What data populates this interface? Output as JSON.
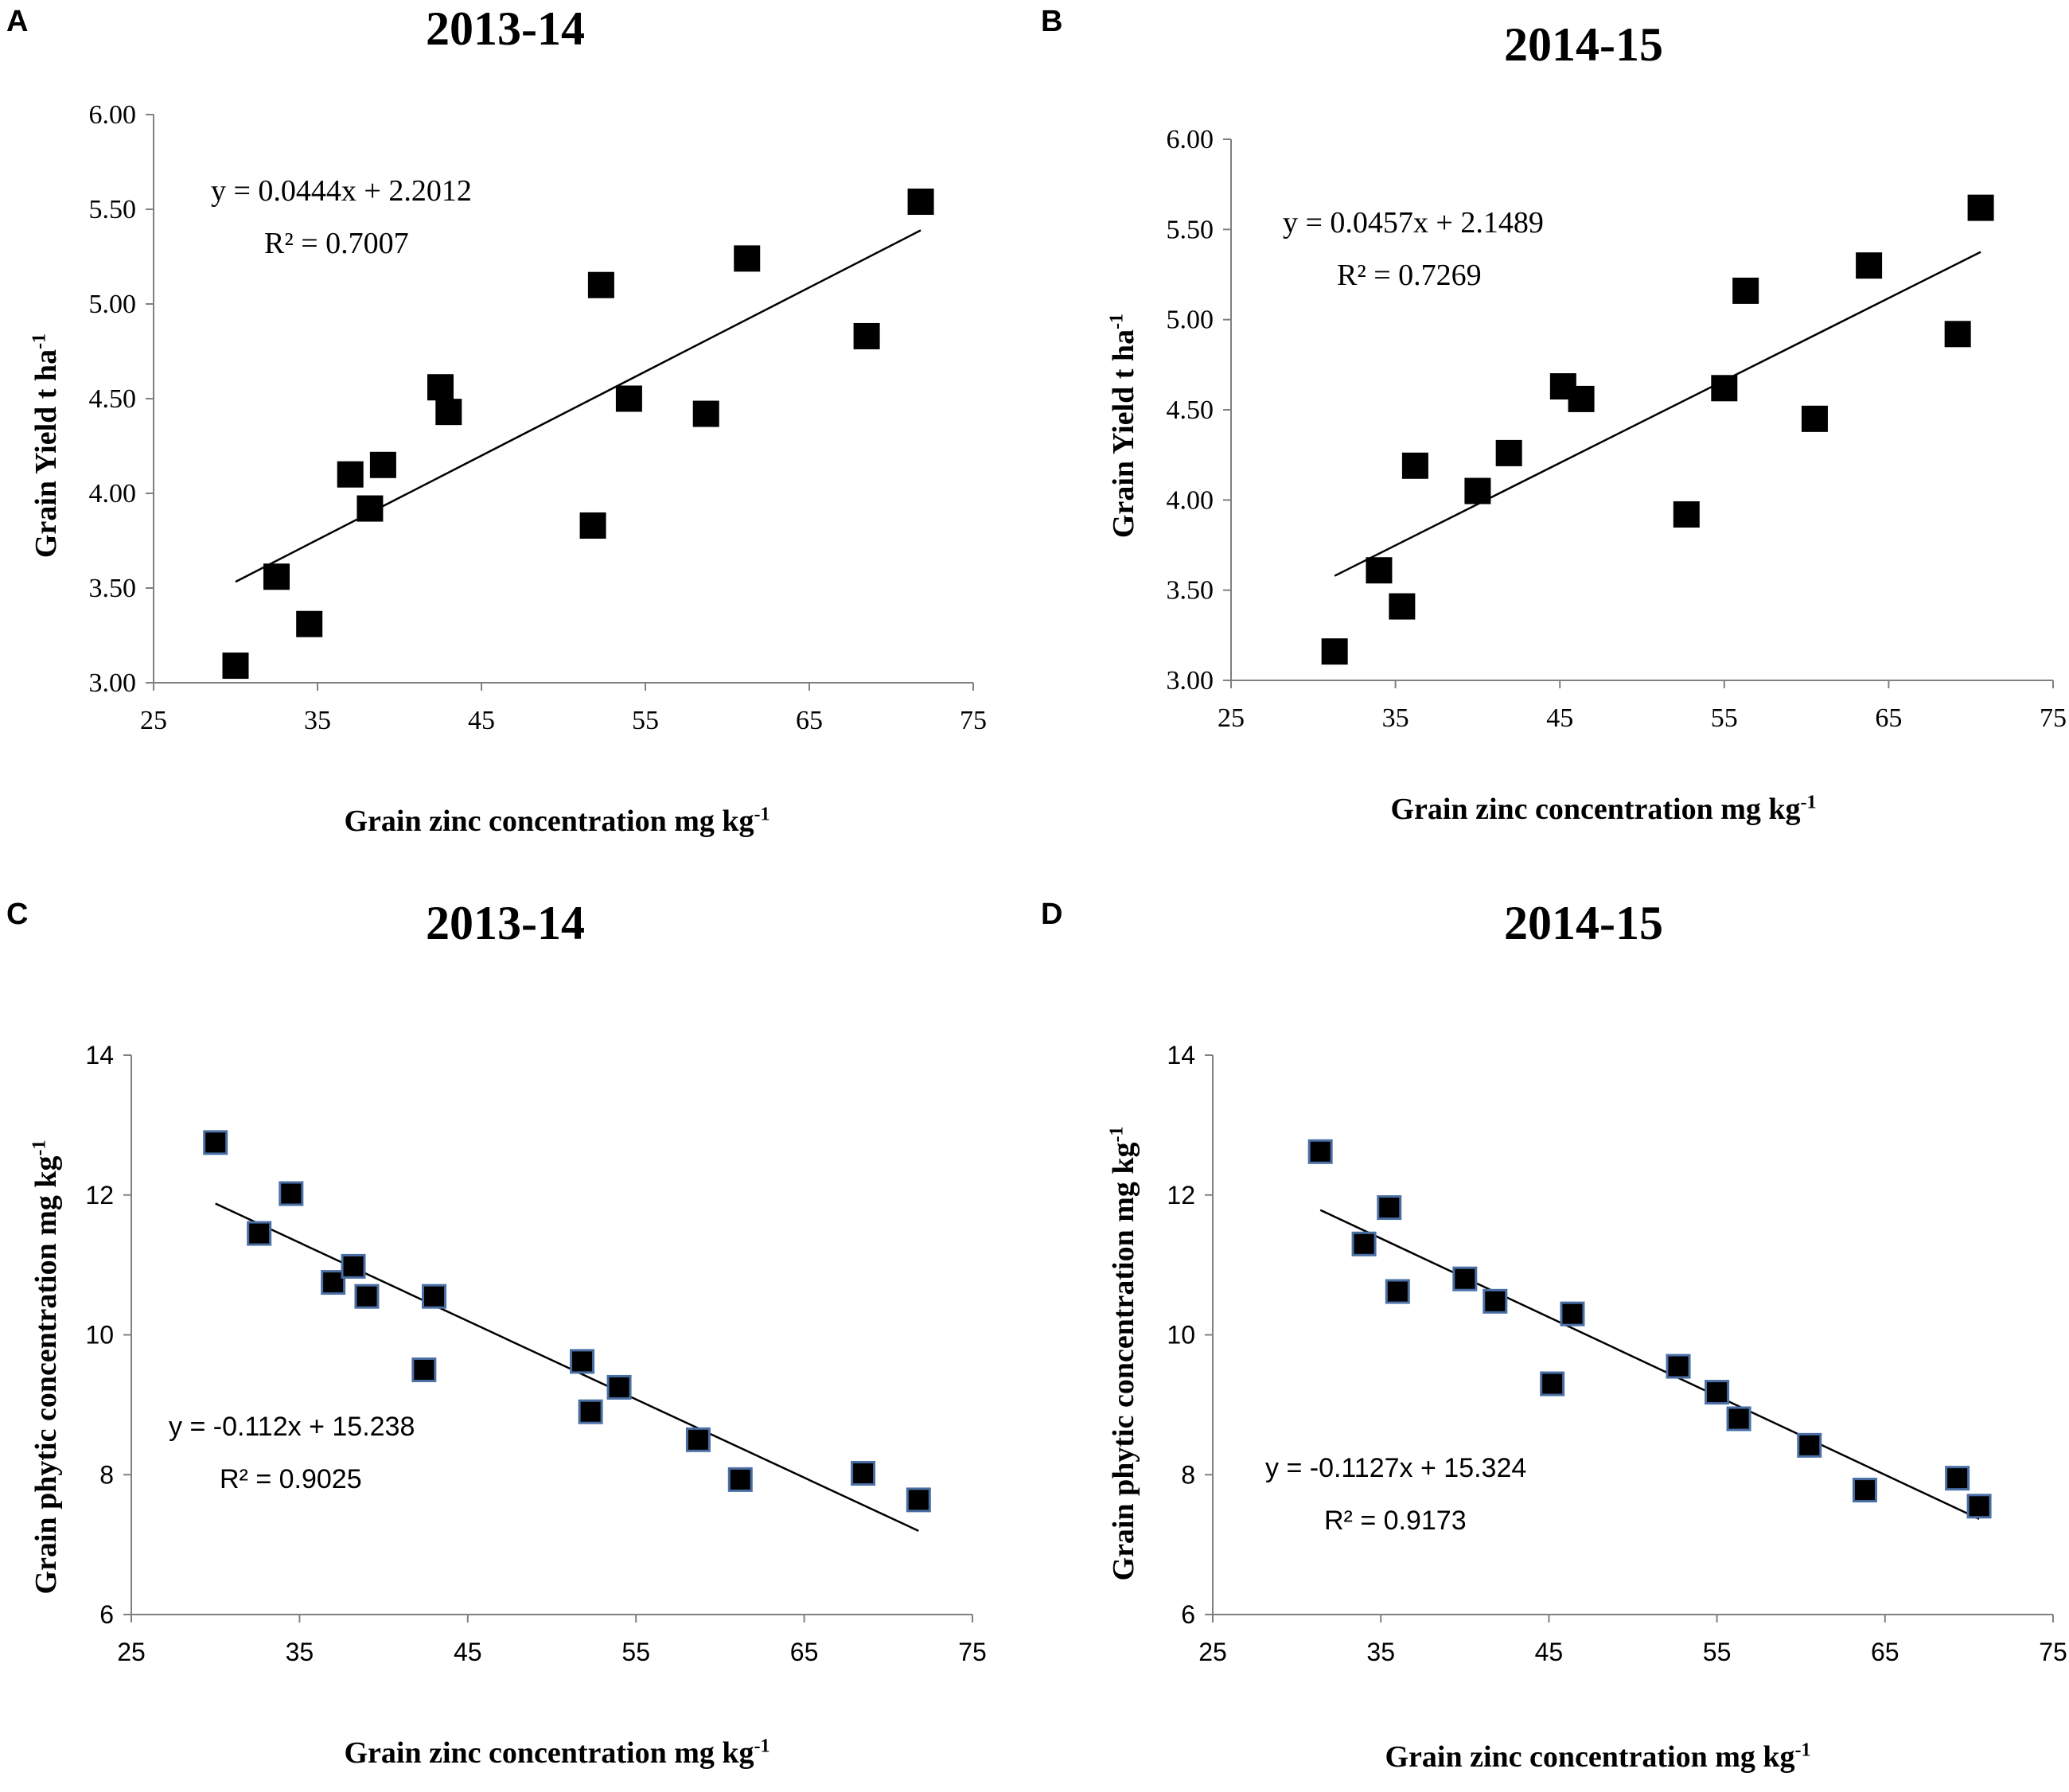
{
  "chart_data": [
    {
      "id": "A",
      "type": "scatter",
      "panel_label": "A",
      "title": "2013-14",
      "xlabel": "Grain zinc concentration mg kg",
      "xlabel_sup": "-1",
      "ylabel": "Grain  Yield t ha",
      "ylabel_sup": "-1",
      "xlim": [
        25,
        75
      ],
      "ylim": [
        3.0,
        6.0
      ],
      "xticks": [
        25,
        35,
        45,
        55,
        65,
        75
      ],
      "yticks": [
        3.0,
        3.5,
        4.0,
        4.5,
        5.0,
        5.5,
        6.0
      ],
      "ytick_format": "2",
      "grid": false,
      "marker_color": "#000000",
      "marker_edge": "#000000",
      "points": [
        [
          30.0,
          3.09
        ],
        [
          32.5,
          3.56
        ],
        [
          34.5,
          3.31
        ],
        [
          37.0,
          4.1
        ],
        [
          38.2,
          3.92
        ],
        [
          39.0,
          4.15
        ],
        [
          42.5,
          4.56
        ],
        [
          43.0,
          4.43
        ],
        [
          51.8,
          3.83
        ],
        [
          52.3,
          5.1
        ],
        [
          54.0,
          4.5
        ],
        [
          58.7,
          4.42
        ],
        [
          61.2,
          5.24
        ],
        [
          68.5,
          4.83
        ],
        [
          71.8,
          5.54
        ]
      ],
      "trendline": {
        "slope": 0.0444,
        "intercept": 2.2012,
        "x_from": 30.0,
        "x_to": 71.8
      },
      "equation": "y = 0.0444x + 2.2012",
      "r2_text": "R² = 0.7007"
    },
    {
      "id": "B",
      "type": "scatter",
      "panel_label": "B",
      "title": "2014-15",
      "xlabel": "Grain zinc concentration mg kg",
      "xlabel_sup": "-1",
      "ylabel": "Grain  Yield t ha",
      "ylabel_sup": "-1",
      "xlim": [
        25,
        75
      ],
      "ylim": [
        3.0,
        6.0
      ],
      "xticks": [
        25,
        35,
        45,
        55,
        65,
        75
      ],
      "yticks": [
        3.0,
        3.5,
        4.0,
        4.5,
        5.0,
        5.5,
        6.0
      ],
      "ytick_format": "2",
      "grid": false,
      "marker_color": "#000000",
      "marker_edge": "#000000",
      "points": [
        [
          31.3,
          3.16
        ],
        [
          34.0,
          3.61
        ],
        [
          35.4,
          3.41
        ],
        [
          36.2,
          4.19
        ],
        [
          40.0,
          4.05
        ],
        [
          41.9,
          4.26
        ],
        [
          45.2,
          4.63
        ],
        [
          46.3,
          4.56
        ],
        [
          52.7,
          3.92
        ],
        [
          55.0,
          4.62
        ],
        [
          56.3,
          5.16
        ],
        [
          60.5,
          4.45
        ],
        [
          63.8,
          5.3
        ],
        [
          69.2,
          4.92
        ],
        [
          70.6,
          5.62
        ]
      ],
      "trendline": {
        "slope": 0.0457,
        "intercept": 2.1489,
        "x_from": 31.3,
        "x_to": 70.6
      },
      "equation": "y = 0.0457x + 2.1489",
      "r2_text": "R² = 0.7269"
    },
    {
      "id": "C",
      "type": "scatter",
      "panel_label": "C",
      "title": "2013-14",
      "xlabel": "Grain zinc concentration mg kg",
      "xlabel_sup": "-1",
      "ylabel": "Grain  phytic concentration mg kg",
      "ylabel_sup": "-1",
      "xlim": [
        25,
        75
      ],
      "ylim": [
        6,
        14
      ],
      "xticks": [
        25,
        35,
        45,
        55,
        65,
        75
      ],
      "yticks": [
        6,
        8,
        10,
        12,
        14
      ],
      "ytick_format": "0",
      "grid": false,
      "marker_color": "#000000",
      "marker_edge": "#4a6fa5",
      "points": [
        [
          30.0,
          12.75
        ],
        [
          32.6,
          11.45
        ],
        [
          34.5,
          12.02
        ],
        [
          37.0,
          10.75
        ],
        [
          38.2,
          10.98
        ],
        [
          39.0,
          10.55
        ],
        [
          42.4,
          9.5
        ],
        [
          43.0,
          10.55
        ],
        [
          51.8,
          9.62
        ],
        [
          52.3,
          8.9
        ],
        [
          54.0,
          9.25
        ],
        [
          58.7,
          8.5
        ],
        [
          61.2,
          7.93
        ],
        [
          68.5,
          8.02
        ],
        [
          71.8,
          7.64
        ]
      ],
      "trendline": {
        "slope": -0.112,
        "intercept": 15.238,
        "x_from": 30.0,
        "x_to": 71.8
      },
      "equation": "y = -0.112x + 15.238",
      "r2_text": "R² = 0.9025"
    },
    {
      "id": "D",
      "type": "scatter",
      "panel_label": "D",
      "title": "2014-15",
      "xlabel": "Grain zinc concentration mg kg",
      "xlabel_sup": "-1",
      "ylabel": "Grain  phytic concentration mg kg",
      "ylabel_sup": "-1",
      "xlim": [
        25,
        75
      ],
      "ylim": [
        6,
        14
      ],
      "xticks": [
        25,
        35,
        45,
        55,
        65,
        75
      ],
      "yticks": [
        6,
        8,
        10,
        12,
        14
      ],
      "ytick_format": "0",
      "grid": false,
      "marker_color": "#000000",
      "marker_edge": "#4a6fa5",
      "points": [
        [
          31.4,
          12.62
        ],
        [
          34.0,
          11.3
        ],
        [
          35.5,
          11.82
        ],
        [
          36.0,
          10.62
        ],
        [
          40.0,
          10.8
        ],
        [
          41.8,
          10.48
        ],
        [
          45.2,
          9.3
        ],
        [
          46.4,
          10.3
        ],
        [
          52.7,
          9.55
        ],
        [
          55.0,
          9.18
        ],
        [
          56.3,
          8.8
        ],
        [
          60.5,
          8.42
        ],
        [
          63.8,
          7.78
        ],
        [
          69.3,
          7.95
        ],
        [
          70.6,
          7.55
        ]
      ],
      "trendline": {
        "slope": -0.1127,
        "intercept": 15.324,
        "x_from": 31.4,
        "x_to": 70.6
      },
      "equation": "y = -0.1127x + 15.324",
      "r2_text": "R² = 0.9173"
    }
  ]
}
